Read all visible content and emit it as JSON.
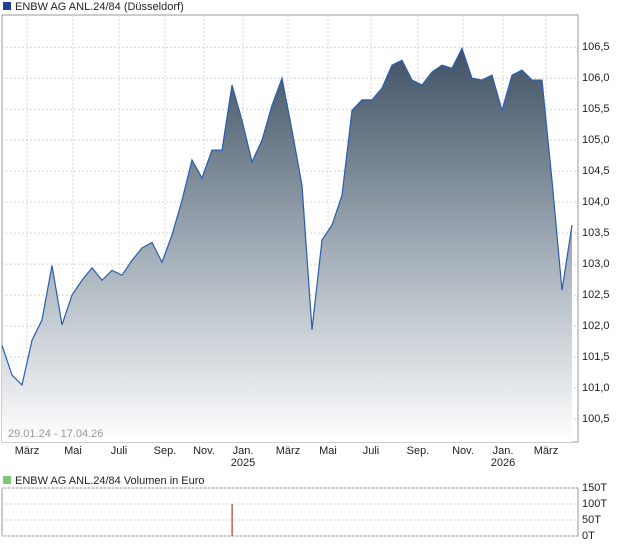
{
  "chart_data": [
    {
      "type": "area",
      "title": "ENBW AG  ANL.24/84 (Düsseldorf)",
      "subtitle": "29.01.24 - 17.04.26",
      "legend_color": "#1f3f99",
      "series": [
        {
          "name": "ENBW AG  ANL.24/84",
          "color": "#2a5db0",
          "values": [
            101.69,
            101.21,
            101.05,
            101.77,
            102.1,
            102.98,
            102.02,
            102.5,
            102.74,
            102.94,
            102.74,
            102.9,
            102.82,
            103.06,
            103.26,
            103.35,
            103.03,
            103.47,
            104.03,
            104.68,
            104.39,
            104.84,
            104.84,
            105.89,
            105.32,
            104.65,
            105.0,
            105.56,
            106.0,
            105.16,
            104.27,
            101.94,
            103.39,
            103.63,
            104.11,
            105.48,
            105.65,
            105.65,
            105.84,
            106.21,
            106.29,
            105.97,
            105.89,
            106.1,
            106.21,
            106.16,
            106.48,
            106.0,
            105.97,
            106.05,
            105.48,
            106.05,
            106.13,
            105.97,
            105.97,
            104.35,
            102.58,
            103.63
          ]
        }
      ],
      "xlim": [
        0,
        57.6
      ],
      "ylim": [
        100.13,
        107.02
      ],
      "grid": true,
      "yticks": [
        {
          "value": 100.5,
          "label": "100,5"
        },
        {
          "value": 101,
          "label": "101,0"
        },
        {
          "value": 101.5,
          "label": "101,5"
        },
        {
          "value": 102,
          "label": "102,0"
        },
        {
          "value": 102.5,
          "label": "102,5"
        },
        {
          "value": 103,
          "label": "103,0"
        },
        {
          "value": 103.5,
          "label": "103,5"
        },
        {
          "value": 104,
          "label": "104,0"
        },
        {
          "value": 104.5,
          "label": "104,5"
        },
        {
          "value": 105,
          "label": "105,0"
        },
        {
          "value": 105.5,
          "label": "105,5"
        },
        {
          "value": 106,
          "label": "106,0"
        },
        {
          "value": 106.5,
          "label": "106,5"
        }
      ],
      "xticks": [
        {
          "value": 2.5,
          "label": "März"
        },
        {
          "value": 7.1,
          "label": "Mai"
        },
        {
          "value": 11.7,
          "label": "Juli"
        },
        {
          "value": 16.3,
          "label": "Sep."
        },
        {
          "value": 20.2,
          "label": "Nov."
        },
        {
          "value": 24.1,
          "label": "Jan."
        },
        {
          "value": 28.6,
          "label": "März"
        },
        {
          "value": 32.6,
          "label": "Mai"
        },
        {
          "value": 36.9,
          "label": "Juli"
        },
        {
          "value": 41.6,
          "label": "Sep."
        },
        {
          "value": 46.1,
          "label": "Nov."
        },
        {
          "value": 50.1,
          "label": "Jan."
        },
        {
          "value": 54.4,
          "label": "März"
        }
      ],
      "years": [
        {
          "value": 24.1,
          "label": "2025"
        },
        {
          "value": 50.1,
          "label": "2026"
        }
      ]
    },
    {
      "type": "bar",
      "title": "ENBW AG  ANL.24/84 Volumen in Euro",
      "legend_color": "#7dc87d",
      "color": "#c0392b",
      "values": [
        0,
        0,
        0,
        0,
        0,
        0,
        0,
        0,
        0,
        0,
        0,
        0,
        0,
        0,
        0,
        0,
        0,
        0,
        0,
        0,
        0,
        0,
        0,
        100000,
        0,
        0,
        0,
        0,
        0,
        0,
        0,
        0,
        0,
        0,
        0,
        0,
        0,
        0,
        0,
        0,
        0,
        0,
        0,
        0,
        0,
        0,
        0,
        0,
        0,
        0,
        0,
        0,
        0,
        0,
        0,
        0,
        0,
        0
      ],
      "xlim": [
        0,
        57.6
      ],
      "ylim": [
        0,
        150000
      ],
      "grid": true,
      "yticks": [
        {
          "value": 0,
          "label": "0T"
        },
        {
          "value": 50000,
          "label": "50T"
        },
        {
          "value": 100000,
          "label": "100T"
        },
        {
          "value": 150000,
          "label": "150T"
        }
      ]
    }
  ]
}
